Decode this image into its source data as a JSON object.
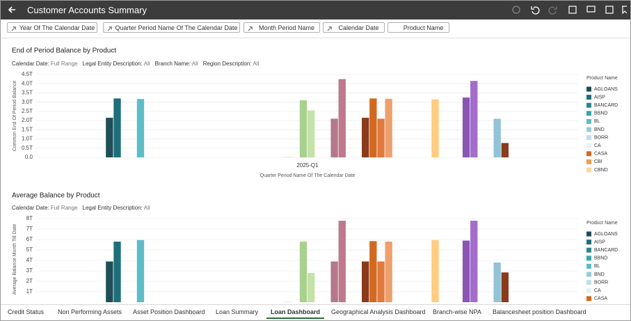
{
  "header": {
    "title": "Customer Accounts Summary"
  },
  "filter_chips": [
    "Year Of The Calendar Date",
    "Quarter Period Name Of The Calendar Date",
    "Month Period Name",
    "Calendar Date",
    "Product Name"
  ],
  "tabs": [
    "Credit Status",
    "Non Performing Assets",
    "Asset Position Dashboard",
    "Loan Summary",
    "Loan Dashboard",
    "Geographical Analysis Dashboard",
    "Branch-wise NPA",
    "Balancesheet position Dashboard"
  ],
  "active_tab": 4,
  "chart_data": [
    {
      "type": "bar",
      "title": "End of Period Balance by Product",
      "filters": [
        {
          "label": "Calendar Date:",
          "value": "Full Range"
        },
        {
          "label": "Legal Entity Description:",
          "value": "All"
        },
        {
          "label": "Branch Name:",
          "value": "All"
        },
        {
          "label": "Region Description:",
          "value": "All"
        }
      ],
      "y_label": "Common End Of Period Balance",
      "x_label": "Quarter Period Name Of The Calendar Date",
      "legend_title": "Product Name",
      "categories": [
        "2025-Q1"
      ],
      "ylim": [
        0,
        4.5
      ],
      "yticks": [
        {
          "value": 0,
          "label": "0.0"
        },
        {
          "value": 0.5,
          "label": "0.5T"
        },
        {
          "value": 1,
          "label": "1.0T"
        },
        {
          "value": 1.5,
          "label": "1.5T"
        },
        {
          "value": 2,
          "label": "2.0T"
        },
        {
          "value": 2.5,
          "label": "2.5T"
        },
        {
          "value": 3,
          "label": "3.0T"
        },
        {
          "value": 3.5,
          "label": "3.5T"
        },
        {
          "value": 4,
          "label": "4.0T"
        },
        {
          "value": 4.5,
          "label": "4.5T"
        }
      ],
      "grid": true,
      "series": [
        {
          "name": "AGLOANS",
          "color": "#1e4f58",
          "values": [
            2.15
          ]
        },
        {
          "name": "AISP",
          "color": "#1f6f7a",
          "values": [
            3.2
          ]
        },
        {
          "name": "BANCARD",
          "color": "#2a868f",
          "values": [
            null
          ]
        },
        {
          "name": "BBND",
          "color": "#37a6ad",
          "values": [
            null
          ]
        },
        {
          "name": "BL",
          "color": "#5dbdc6",
          "values": [
            3.17
          ]
        },
        {
          "name": "BND",
          "color": "#97ccd9",
          "values": [
            null
          ]
        },
        {
          "name": "BORR",
          "color": "#bfe0e8",
          "values": [
            null
          ]
        },
        {
          "name": "CA",
          "color": "#e6f2f5",
          "values": [
            null
          ]
        },
        {
          "name": "CASA",
          "color": "#d2691e",
          "values": [
            null
          ]
        },
        {
          "name": "CBI",
          "color": "#f39c4a",
          "values": [
            null
          ]
        },
        {
          "name": "CBND",
          "color": "#ffd59e",
          "values": [
            null
          ]
        },
        {
          "values": [
            null
          ]
        },
        {
          "values": [
            null
          ]
        },
        {
          "values": [
            null
          ]
        },
        {
          "values": [
            null
          ]
        },
        {
          "values": [
            null
          ]
        },
        {
          "values": [
            null
          ]
        },
        {
          "values": [
            null
          ]
        },
        {
          "values": [
            null
          ]
        },
        {
          "values": [
            null
          ]
        },
        {
          "values": [
            null
          ]
        },
        {
          "values": [
            null
          ]
        },
        {
          "values": [
            null
          ]
        },
        {
          "color": "#cfe8bd",
          "values": [
            0.03
          ]
        },
        {
          "values": [
            null
          ]
        },
        {
          "color": "#a8d18d",
          "values": [
            3.1
          ]
        },
        {
          "color": "#c5e2a8",
          "values": [
            2.55
          ]
        },
        {
          "values": [
            null
          ]
        },
        {
          "values": [
            null
          ]
        },
        {
          "color": "#b3798a",
          "values": [
            2.1
          ]
        },
        {
          "color": "#c0788e",
          "values": [
            4.25
          ]
        },
        {
          "values": [
            null
          ]
        },
        {
          "values": [
            null
          ]
        },
        {
          "color": "#8b3a1c",
          "values": [
            2.15
          ]
        },
        {
          "color": "#d2691e",
          "values": [
            3.2
          ]
        },
        {
          "color": "#e07a3e",
          "values": [
            2.1
          ]
        },
        {
          "color": "#eda06c",
          "values": [
            3.18
          ]
        },
        {
          "values": [
            null
          ]
        },
        {
          "values": [
            null
          ]
        },
        {
          "values": [
            null
          ]
        },
        {
          "values": [
            null
          ]
        },
        {
          "values": [
            null
          ]
        },
        {
          "color": "#ffcc80",
          "values": [
            3.15
          ]
        },
        {
          "values": [
            null
          ]
        },
        {
          "values": [
            null
          ]
        },
        {
          "values": [
            null
          ]
        },
        {
          "color": "#8a55b5",
          "values": [
            3.25
          ]
        },
        {
          "color": "#a46ccc",
          "values": [
            4.15
          ]
        },
        {
          "values": [
            null
          ]
        },
        {
          "values": [
            null
          ]
        },
        {
          "color": "#93c3d6",
          "values": [
            2.1
          ]
        },
        {
          "color": "#8b3a1c",
          "values": [
            0.78
          ]
        }
      ]
    },
    {
      "type": "bar",
      "title": "Average Balance by Product",
      "filters": [
        {
          "label": "Calendar Date:",
          "value": "Full Range"
        },
        {
          "label": "Legal Entity Description:",
          "value": "All"
        }
      ],
      "y_label": "Average Balance Month Till Date",
      "legend_title": "Product Name",
      "ylim": [
        0,
        8
      ],
      "yticks": [
        {
          "value": 1,
          "label": "1T"
        },
        {
          "value": 2,
          "label": "2T"
        },
        {
          "value": 3,
          "label": "3T"
        },
        {
          "value": 4,
          "label": "4T"
        },
        {
          "value": 5,
          "label": "5T"
        },
        {
          "value": 6,
          "label": "6T"
        },
        {
          "value": 7,
          "label": "7T"
        },
        {
          "value": 8,
          "label": "8T"
        }
      ],
      "grid": true,
      "series": [
        {
          "name": "AGLOANS",
          "color": "#1e4f58",
          "values": [
            3.9
          ]
        },
        {
          "name": "AISP",
          "color": "#1f6f7a",
          "values": [
            5.8
          ]
        },
        {
          "name": "BANCARD",
          "color": "#2a868f",
          "values": [
            null
          ]
        },
        {
          "name": "BBND",
          "color": "#37a6ad",
          "values": [
            null
          ]
        },
        {
          "name": "BL",
          "color": "#5dbdc6",
          "values": [
            5.95
          ]
        },
        {
          "name": "BND",
          "color": "#97ccd9",
          "values": [
            null
          ]
        },
        {
          "name": "BORR",
          "color": "#bfe0e8",
          "values": [
            null
          ]
        },
        {
          "name": "CA",
          "color": "#e6f2f5",
          "values": [
            null
          ]
        },
        {
          "name": "CASA",
          "color": "#d2691e",
          "values": [
            null
          ]
        },
        {
          "values": [
            null
          ]
        },
        {
          "values": [
            null
          ]
        },
        {
          "values": [
            null
          ]
        },
        {
          "values": [
            null
          ]
        },
        {
          "values": [
            null
          ]
        },
        {
          "values": [
            null
          ]
        },
        {
          "values": [
            null
          ]
        },
        {
          "values": [
            null
          ]
        },
        {
          "values": [
            null
          ]
        },
        {
          "values": [
            null
          ]
        },
        {
          "values": [
            null
          ]
        },
        {
          "values": [
            null
          ]
        },
        {
          "values": [
            null
          ]
        },
        {
          "values": [
            null
          ]
        },
        {
          "color": "#cfe8bd",
          "values": [
            0.05
          ]
        },
        {
          "values": [
            null
          ]
        },
        {
          "color": "#a8d18d",
          "values": [
            5.8
          ]
        },
        {
          "color": "#c5e2a8",
          "values": [
            2.8
          ]
        },
        {
          "values": [
            null
          ]
        },
        {
          "values": [
            null
          ]
        },
        {
          "color": "#b3798a",
          "values": [
            3.9
          ]
        },
        {
          "color": "#c0788e",
          "values": [
            7.8
          ]
        },
        {
          "values": [
            null
          ]
        },
        {
          "values": [
            null
          ]
        },
        {
          "color": "#8b3a1c",
          "values": [
            3.9
          ]
        },
        {
          "color": "#d2691e",
          "values": [
            5.85
          ]
        },
        {
          "color": "#e07a3e",
          "values": [
            3.9
          ]
        },
        {
          "color": "#eda06c",
          "values": [
            5.8
          ]
        },
        {
          "values": [
            null
          ]
        },
        {
          "values": [
            null
          ]
        },
        {
          "values": [
            null
          ]
        },
        {
          "values": [
            null
          ]
        },
        {
          "values": [
            null
          ]
        },
        {
          "color": "#ffcc80",
          "values": [
            5.95
          ]
        },
        {
          "values": [
            null
          ]
        },
        {
          "values": [
            null
          ]
        },
        {
          "values": [
            null
          ]
        },
        {
          "color": "#8a55b5",
          "values": [
            5.9
          ]
        },
        {
          "color": "#a46ccc",
          "values": [
            7.8
          ]
        },
        {
          "values": [
            null
          ]
        },
        {
          "values": [
            null
          ]
        },
        {
          "color": "#93c3d6",
          "values": [
            3.8
          ]
        },
        {
          "color": "#8b3a1c",
          "values": [
            2.85
          ]
        }
      ]
    }
  ]
}
